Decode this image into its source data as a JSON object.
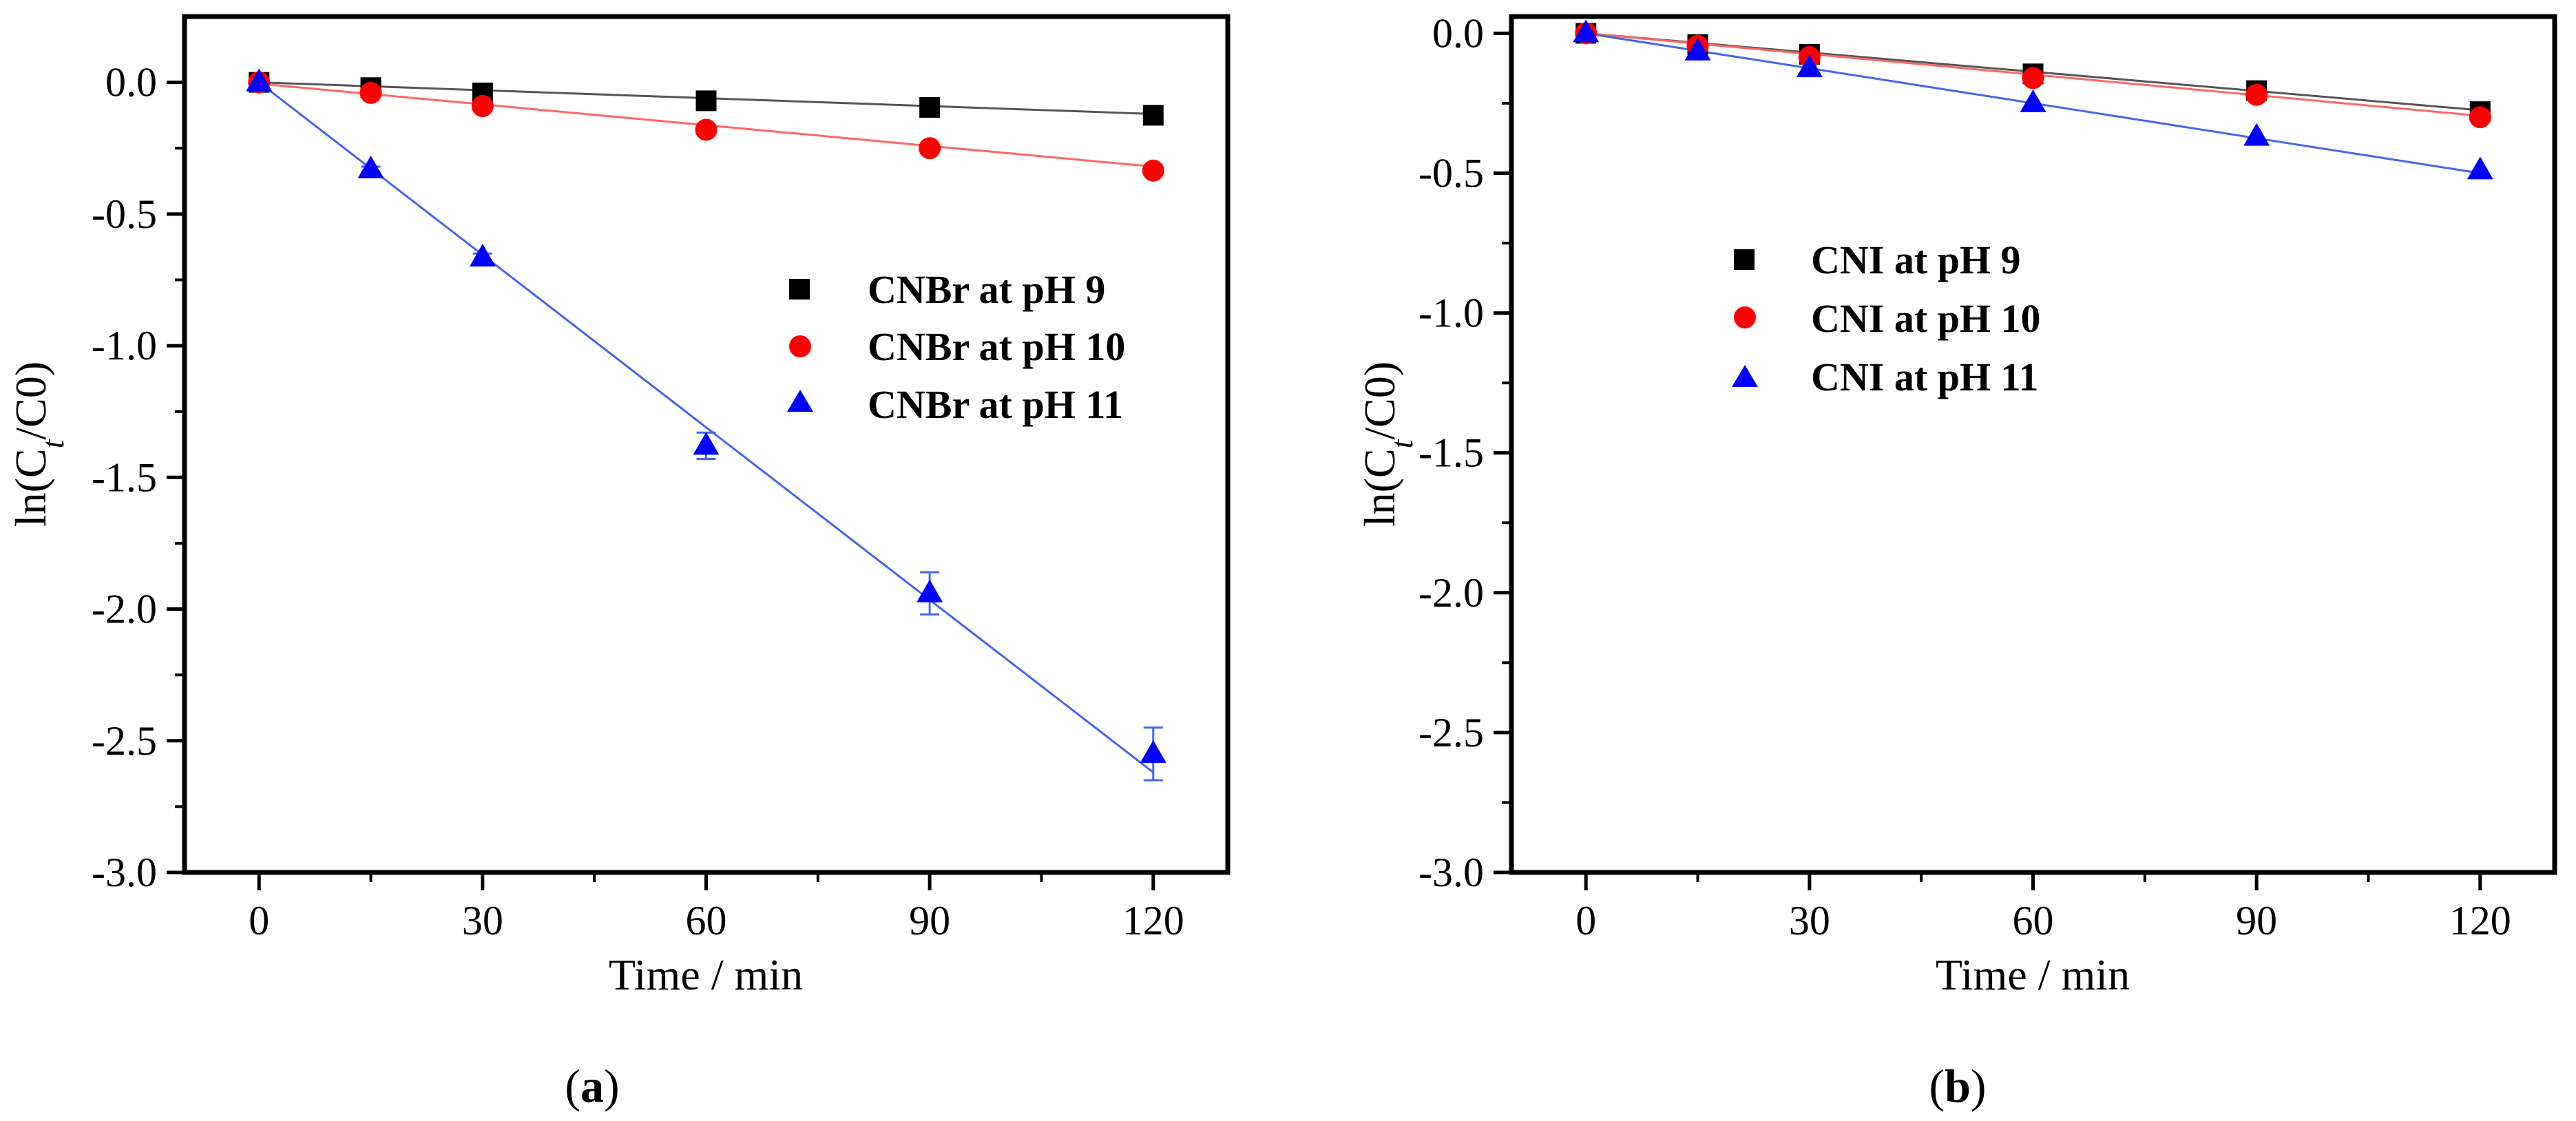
{
  "chart_data": [
    {
      "type": "scatter",
      "panel_label": "a",
      "title": "",
      "xlabel": "Time / min",
      "ylabel": {
        "main": "ln(C",
        "sub": "t",
        "rest": "/C0)"
      },
      "xlim": [
        -10,
        130
      ],
      "ylim": [
        -3.0,
        0.25
      ],
      "xticks": [
        0,
        30,
        60,
        90,
        120
      ],
      "yticks": [
        0.0,
        -0.5,
        -1.0,
        -1.5,
        -2.0,
        -2.5,
        -3.0
      ],
      "xtick_labels": [
        "0",
        "30",
        "60",
        "90",
        "120"
      ],
      "ytick_labels": [
        "0.0",
        "-0.5",
        "-1.0",
        "-1.5",
        "-2.0",
        "-2.5",
        "-3.0"
      ],
      "legend_position": "right-middle",
      "series": [
        {
          "name": "CNBr at pH 9",
          "marker": "square",
          "color": "#000000",
          "line_color": "#555555",
          "x": [
            0,
            15,
            30,
            60,
            90,
            120
          ],
          "y": [
            0.0,
            -0.02,
            -0.04,
            -0.07,
            -0.095,
            -0.125
          ],
          "err": [
            0,
            0,
            0,
            0,
            0,
            0
          ],
          "fit": [
            [
              0,
              0.0
            ],
            [
              120,
              -0.12
            ]
          ]
        },
        {
          "name": "CNBr at pH 10",
          "marker": "circle",
          "color": "#ff0000",
          "line_color": "#ff6666",
          "x": [
            0,
            15,
            30,
            60,
            90,
            120
          ],
          "y": [
            0.0,
            -0.04,
            -0.09,
            -0.18,
            -0.25,
            -0.335
          ],
          "err": [
            0,
            0,
            0,
            0,
            0,
            0
          ],
          "fit": [
            [
              0,
              -0.005
            ],
            [
              120,
              -0.32
            ]
          ]
        },
        {
          "name": "CNBr at pH 11",
          "marker": "triangle",
          "color": "#0000ff",
          "line_color": "#4466ee",
          "x": [
            0,
            15,
            30,
            60,
            90,
            120
          ],
          "y": [
            0.0,
            -0.33,
            -0.665,
            -1.38,
            -1.94,
            -2.55
          ],
          "err": [
            0,
            0.01,
            0.015,
            0.05,
            0.08,
            0.1
          ],
          "fit": [
            [
              0,
              0.0
            ],
            [
              120,
              -2.62
            ]
          ]
        }
      ]
    },
    {
      "type": "scatter",
      "panel_label": "b",
      "title": "",
      "xlabel": "Time / min",
      "ylabel": {
        "main": "ln(C",
        "sub": "t",
        "rest": "/C0)"
      },
      "xlim": [
        -10,
        130
      ],
      "ylim": [
        -3.0,
        0.06
      ],
      "xticks": [
        0,
        30,
        60,
        90,
        120
      ],
      "yticks": [
        0.0,
        -0.5,
        -1.0,
        -1.5,
        -2.0,
        -2.5,
        -3.0
      ],
      "xtick_labels": [
        "0",
        "30",
        "60",
        "90",
        "120"
      ],
      "ytick_labels": [
        "0.0",
        "-0.5",
        "-1.0",
        "-1.5",
        "-2.0",
        "-2.5",
        "-3.0"
      ],
      "legend_position": "left-middle",
      "series": [
        {
          "name": "CNI at pH 9",
          "marker": "square",
          "color": "#000000",
          "line_color": "#555555",
          "x": [
            0,
            15,
            30,
            60,
            90,
            120
          ],
          "y": [
            0.0,
            -0.04,
            -0.075,
            -0.145,
            -0.205,
            -0.28
          ],
          "err": [
            0,
            0,
            0,
            0,
            0,
            0
          ],
          "fit": [
            [
              0,
              0.0
            ],
            [
              120,
              -0.275
            ]
          ]
        },
        {
          "name": "CNI at pH 10",
          "marker": "circle",
          "color": "#ff0000",
          "line_color": "#ff6666",
          "x": [
            0,
            15,
            30,
            60,
            90,
            120
          ],
          "y": [
            0.0,
            -0.045,
            -0.085,
            -0.16,
            -0.22,
            -0.3
          ],
          "err": [
            0,
            0,
            0,
            0,
            0,
            0
          ],
          "fit": [
            [
              0,
              0.0
            ],
            [
              120,
              -0.295
            ]
          ]
        },
        {
          "name": "CNI at pH 11",
          "marker": "triangle",
          "color": "#0000ff",
          "line_color": "#4466ee",
          "x": [
            0,
            15,
            30,
            60,
            90,
            120
          ],
          "y": [
            0.0,
            -0.065,
            -0.125,
            -0.25,
            -0.37,
            -0.49
          ],
          "err": [
            0,
            0,
            0,
            0,
            0,
            0
          ],
          "fit": [
            [
              0,
              0.0
            ],
            [
              120,
              -0.5
            ]
          ]
        }
      ]
    }
  ]
}
